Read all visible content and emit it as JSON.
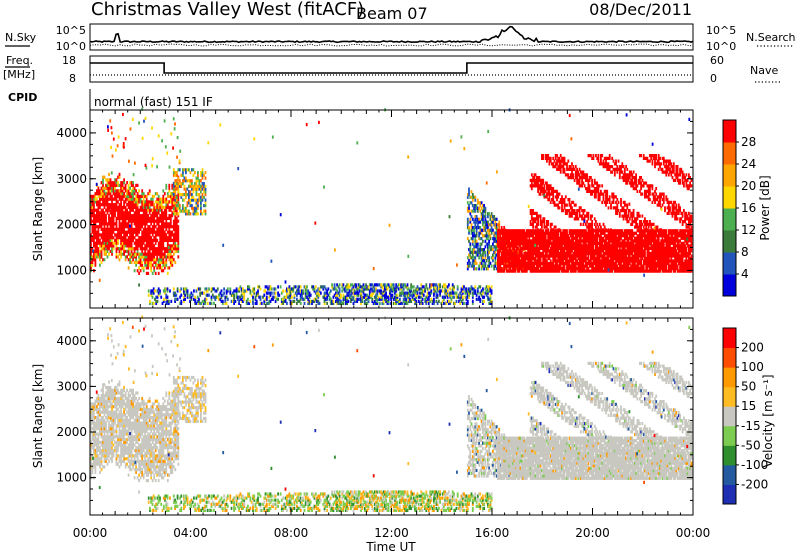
{
  "header": {
    "site": "Christmas Valley West (fitACF)",
    "beam": "Beam 07",
    "date": "08/Dec/2011"
  },
  "strips": {
    "nsky_label": "N.Sky",
    "nsky_ticks": [
      "10^5",
      "10^0"
    ],
    "nsearch_label": "N.Search",
    "nsearch_ticks": [
      "10^5",
      "10^0"
    ],
    "freq_label": "Freq.",
    "freq_unit": "[MHz]",
    "freq_ticks": [
      "18",
      "8"
    ],
    "nave_label": "Nave",
    "nave_ticks": [
      "60",
      "0"
    ],
    "cpid_label": "CPID",
    "cpid_text": "normal (fast) 151 IF"
  },
  "colors": {
    "power_scale": [
      "#0000dd",
      "#2255bb",
      "#3a7a3a",
      "#4caf50",
      "#ffd700",
      "#ffa500",
      "#ff6a00",
      "#ff0000"
    ],
    "velocity_scale": [
      "#ff0000",
      "#ff4d00",
      "#ff9900",
      "#ffbb22",
      "#c8c8c0",
      "#7ccc50",
      "#2f8f2f",
      "#235aa0",
      "#1e2fb4"
    ],
    "ground_scatter": "#c8c8c0"
  },
  "chart_data": [
    {
      "type": "heatmap",
      "name": "power",
      "ylabel": "Slant Range [km]",
      "xlabel": "",
      "x_ticks": [
        "00:00",
        "04:00",
        "08:00",
        "12:00",
        "16:00",
        "20:00",
        "00:00"
      ],
      "y_ticks": [
        "1000",
        "2000",
        "3000",
        "4000"
      ],
      "xlim_hours": [
        0,
        24
      ],
      "ylim_km": [
        180,
        4500
      ],
      "colorbar_label": "Power [dB]",
      "colorbar_ticks": [
        "28",
        "24",
        "20",
        "16",
        "12",
        "8",
        "4"
      ]
    },
    {
      "type": "heatmap",
      "name": "velocity",
      "ylabel": "Slant Range [km]",
      "xlabel": "Time UT",
      "x_ticks": [
        "00:00",
        "04:00",
        "08:00",
        "12:00",
        "16:00",
        "20:00",
        "00:00"
      ],
      "y_ticks": [
        "1000",
        "2000",
        "3000",
        "4000"
      ],
      "xlim_hours": [
        0,
        24
      ],
      "ylim_km": [
        180,
        4500
      ],
      "colorbar_label": "Velocity [m s⁻¹]",
      "colorbar_ticks": [
        "200",
        "100",
        "50",
        "15",
        "-15",
        "-50",
        "-100",
        "-200"
      ]
    }
  ]
}
